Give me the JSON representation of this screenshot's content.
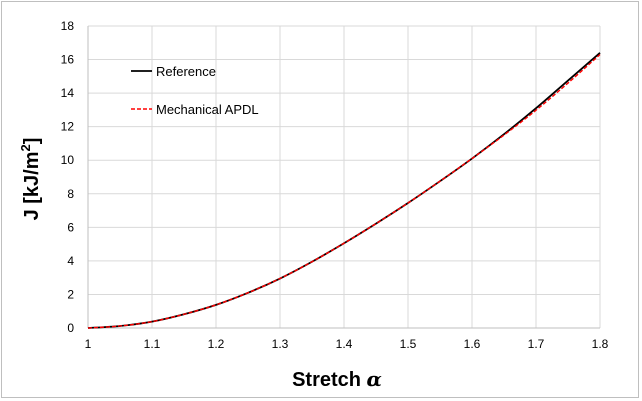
{
  "chart_data": {
    "type": "line",
    "xlabel": "Stretch",
    "xlabel_symbol": "α",
    "ylabel": "J  [kJ/m",
    "ylabel_sup": "2",
    "ylabel_close": "]",
    "xlim": [
      1,
      1.8
    ],
    "ylim": [
      0,
      18
    ],
    "xticks": [
      "1",
      "1.1",
      "1.2",
      "1.3",
      "1.4",
      "1.5",
      "1.6",
      "1.7",
      "1.8"
    ],
    "yticks": [
      "0",
      "2",
      "4",
      "6",
      "8",
      "10",
      "12",
      "14",
      "16",
      "18"
    ],
    "grid": true,
    "legend_position": "top-left",
    "series": [
      {
        "name": "Reference",
        "color": "#000000",
        "style": "solid",
        "x": [
          1.0,
          1.05,
          1.1,
          1.15,
          1.2,
          1.25,
          1.3,
          1.35,
          1.4,
          1.45,
          1.5,
          1.55,
          1.6,
          1.65,
          1.7,
          1.75,
          1.8
        ],
        "y": [
          0.0,
          0.12,
          0.38,
          0.82,
          1.38,
          2.1,
          2.95,
          3.95,
          5.05,
          6.22,
          7.45,
          8.75,
          10.1,
          11.55,
          13.1,
          14.75,
          16.4
        ]
      },
      {
        "name": "Mechanical APDL",
        "color": "#ff0000",
        "style": "dashed",
        "x": [
          1.0,
          1.05,
          1.1,
          1.15,
          1.2,
          1.25,
          1.3,
          1.35,
          1.4,
          1.45,
          1.5,
          1.55,
          1.6,
          1.65,
          1.7,
          1.75,
          1.8
        ],
        "y": [
          0.0,
          0.12,
          0.38,
          0.82,
          1.38,
          2.1,
          2.95,
          3.95,
          5.05,
          6.22,
          7.45,
          8.75,
          10.1,
          11.5,
          12.98,
          14.6,
          16.3
        ]
      }
    ]
  }
}
